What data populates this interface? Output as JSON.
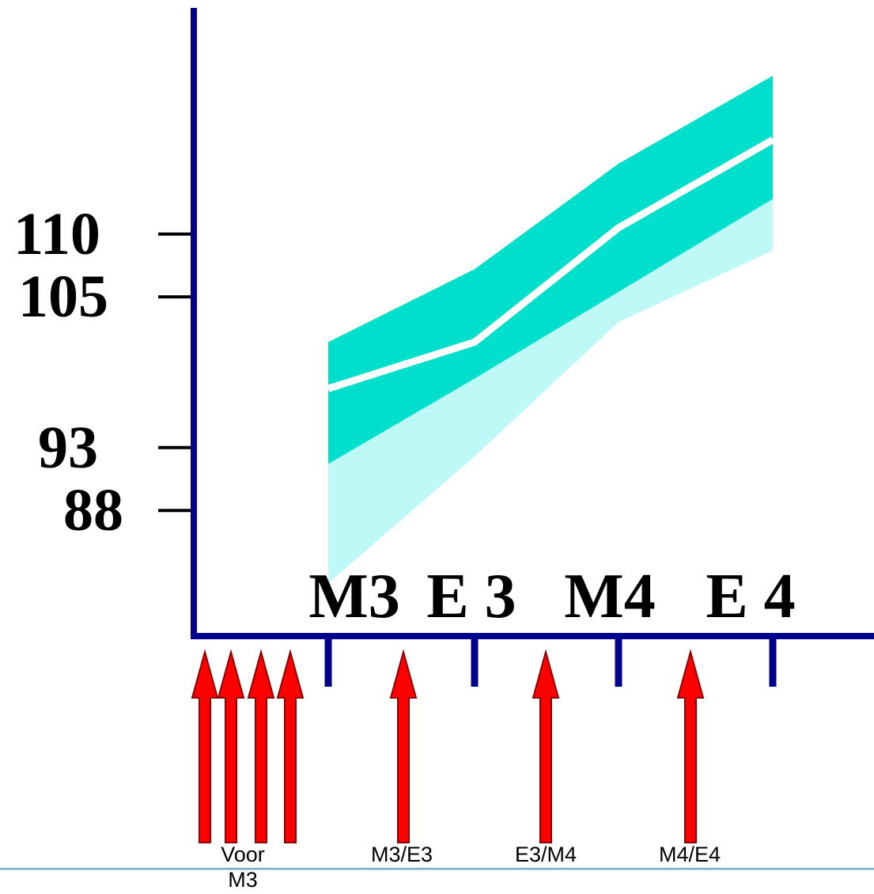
{
  "chart_data": {
    "type": "area",
    "ylim": [
      78,
      128
    ],
    "y_ticks": [
      "110",
      "105",
      "93",
      "88"
    ],
    "y_tick_values": [
      110,
      105,
      93,
      88
    ],
    "categories": [
      "M3",
      "E 3",
      "M4",
      "E 4"
    ],
    "series": [
      {
        "p90": 101.4,
        "p75": 99.7,
        "median": 97.7,
        "p25": 91.7,
        "p10": 82.2
      },
      {
        "p90": 107.2,
        "p75": 105.6,
        "median": 101.4,
        "p25": 98.5,
        "p10": 92.3
      },
      {
        "p90": 115.6,
        "p75": 113.1,
        "median": 110.5,
        "p25": 105.4,
        "p10": 103.0
      },
      {
        "p90": 122.6,
        "p75": 120.3,
        "median": 117.5,
        "p25": 112.8,
        "p10": 108.7
      }
    ],
    "colors": {
      "outer_band": "#bff9f7",
      "inner_band": "#00dfcc",
      "median_line": "#ffffff",
      "axis": "#00008b",
      "arrow_fill": "#ff0000",
      "arrow_stroke": "#8b0000",
      "text": "#000000"
    },
    "test_markers": [
      {
        "label": "Voor\nM3",
        "count": 4
      },
      {
        "label": "M3/E3",
        "count": 1
      },
      {
        "label": "E3/M4",
        "count": 1
      },
      {
        "label": "M4/E4",
        "count": 1
      }
    ]
  }
}
